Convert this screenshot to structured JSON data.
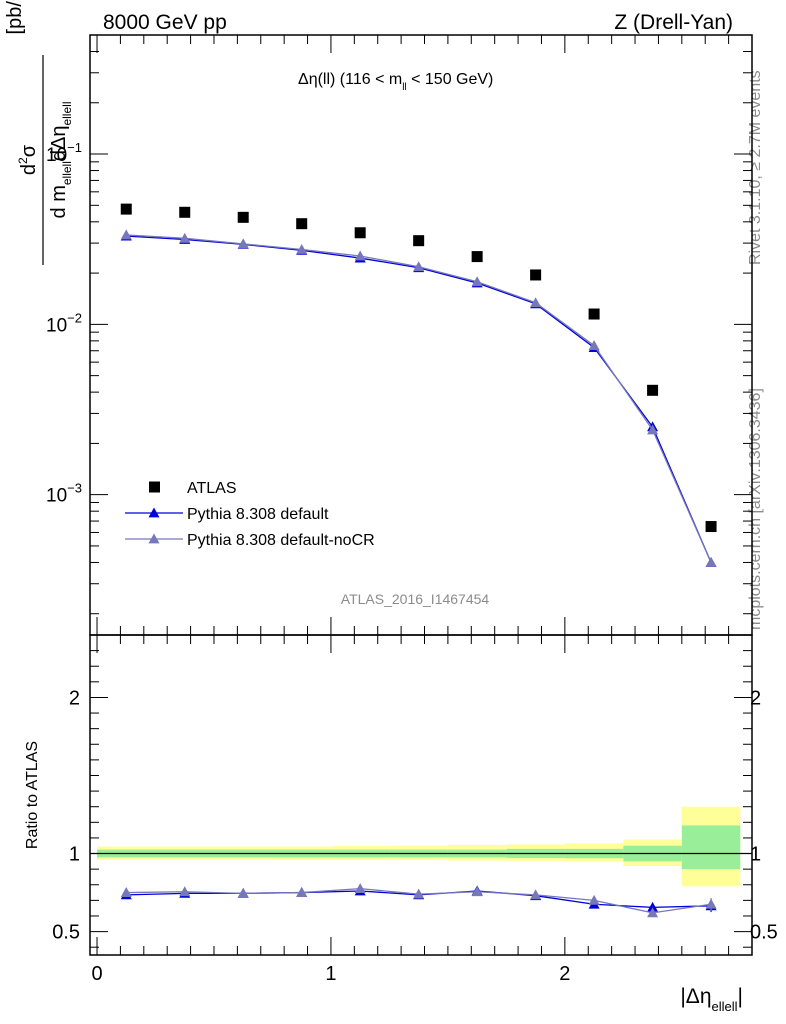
{
  "header": {
    "left": "8000 GeV pp",
    "right": "Z (Drell-Yan)"
  },
  "side_labels": {
    "rivet": "Rivet 3.1.10, ≥ 2.7M events",
    "mcplots": "mcplots.cern.ch [arXiv:1306.3436]"
  },
  "plot_title": {
    "main": "Δη(ll) (116 < m",
    "sub": "ll",
    "tail": " < 150 GeV)"
  },
  "watermark": "ATLAS_2016_I1467454",
  "legend": [
    {
      "label": "ATLAS",
      "color": "#000000",
      "marker": "square"
    },
    {
      "label": "Pythia 8.308 default",
      "color": "#0000dd",
      "marker": "triangle"
    },
    {
      "label": "Pythia 8.308 default-noCR",
      "color": "#7777bb",
      "marker": "triangle"
    }
  ],
  "ylabel_main": {
    "frac_num_d": "d",
    "frac_num_sup": "2",
    "frac_num_sigma": "σ",
    "frac_den_a": "d m",
    "frac_den_sub1": "ellell",
    "frac_den_b": "dΔη",
    "frac_den_sub2": "ellell",
    "units": "[pb/GeV]"
  },
  "ylabel_ratio": "Ratio to ATLAS",
  "xlabel": {
    "main": "|Δη",
    "sub": "ellell",
    "close": "|"
  },
  "ytick_main": [
    {
      "base": "10",
      "exp": "−1",
      "value": 0.1
    },
    {
      "base": "10",
      "exp": "−2",
      "value": 0.01
    },
    {
      "base": "10",
      "exp": "−3",
      "value": 0.001
    }
  ],
  "ytick_ratio": [
    "0.5",
    "1",
    "2"
  ],
  "xtick": [
    "0",
    "1",
    "2"
  ],
  "chart_data": {
    "type": "scatter",
    "x": [
      0.125,
      0.375,
      0.625,
      0.875,
      1.125,
      1.375,
      1.625,
      1.875,
      2.125,
      2.375,
      2.625
    ],
    "xlim": [
      -0.03,
      2.8
    ],
    "ylim": [
      0.00015,
      0.5
    ],
    "ylog": true,
    "ratio_ylim": [
      0.35,
      2.4
    ],
    "series": [
      {
        "name": "ATLAS",
        "color": "#000000",
        "values": [
          0.0475,
          0.0455,
          0.0425,
          0.039,
          0.0345,
          0.031,
          0.025,
          0.0195,
          0.0115,
          0.0041,
          0.00065
        ]
      },
      {
        "name": "Pythia 8.308 default",
        "color": "#0000dd",
        "values": [
          0.033,
          0.0315,
          0.0295,
          0.0272,
          0.0245,
          0.0215,
          0.0175,
          0.0132,
          0.0073,
          0.0025,
          0.0004
        ],
        "ratio": [
          0.735,
          0.745,
          0.745,
          0.75,
          0.76,
          0.735,
          0.76,
          0.73,
          0.675,
          0.655,
          0.665
        ],
        "ratio_err": [
          0.01,
          0.01,
          0.01,
          0.01,
          0.01,
          0.01,
          0.01,
          0.01,
          0.012,
          0.015,
          0.04
        ]
      },
      {
        "name": "Pythia 8.308 default-noCR",
        "color": "#7777bb",
        "values": [
          0.0335,
          0.032,
          0.0297,
          0.0275,
          0.0252,
          0.0218,
          0.0178,
          0.0134,
          0.0075,
          0.0024,
          0.0004
        ],
        "ratio": [
          0.75,
          0.755,
          0.745,
          0.75,
          0.775,
          0.74,
          0.755,
          0.735,
          0.7,
          0.62,
          0.675
        ],
        "ratio_err": [
          0.01,
          0.01,
          0.01,
          0.01,
          0.01,
          0.01,
          0.01,
          0.01,
          0.012,
          0.015,
          0.04
        ]
      }
    ],
    "uncertainty_bands": {
      "x_edges": [
        0.0,
        0.25,
        0.5,
        0.75,
        1.0,
        1.25,
        1.5,
        1.75,
        2.0,
        2.25,
        2.5,
        2.75
      ],
      "stat": [
        [
          0.975,
          1.025
        ],
        [
          0.975,
          1.025
        ],
        [
          0.975,
          1.025
        ],
        [
          0.975,
          1.025
        ],
        [
          0.975,
          1.025
        ],
        [
          0.975,
          1.025
        ],
        [
          0.975,
          1.025
        ],
        [
          0.972,
          1.03
        ],
        [
          0.97,
          1.03
        ],
        [
          0.95,
          1.05
        ],
        [
          0.9,
          1.18
        ]
      ],
      "total": [
        [
          0.96,
          1.045
        ],
        [
          0.96,
          1.045
        ],
        [
          0.96,
          1.045
        ],
        [
          0.958,
          1.045
        ],
        [
          0.958,
          1.048
        ],
        [
          0.958,
          1.05
        ],
        [
          0.955,
          1.055
        ],
        [
          0.953,
          1.058
        ],
        [
          0.95,
          1.065
        ],
        [
          0.92,
          1.09
        ],
        [
          0.79,
          1.3
        ]
      ],
      "stat_color": "#99ee99",
      "total_color": "#ffff99"
    }
  }
}
